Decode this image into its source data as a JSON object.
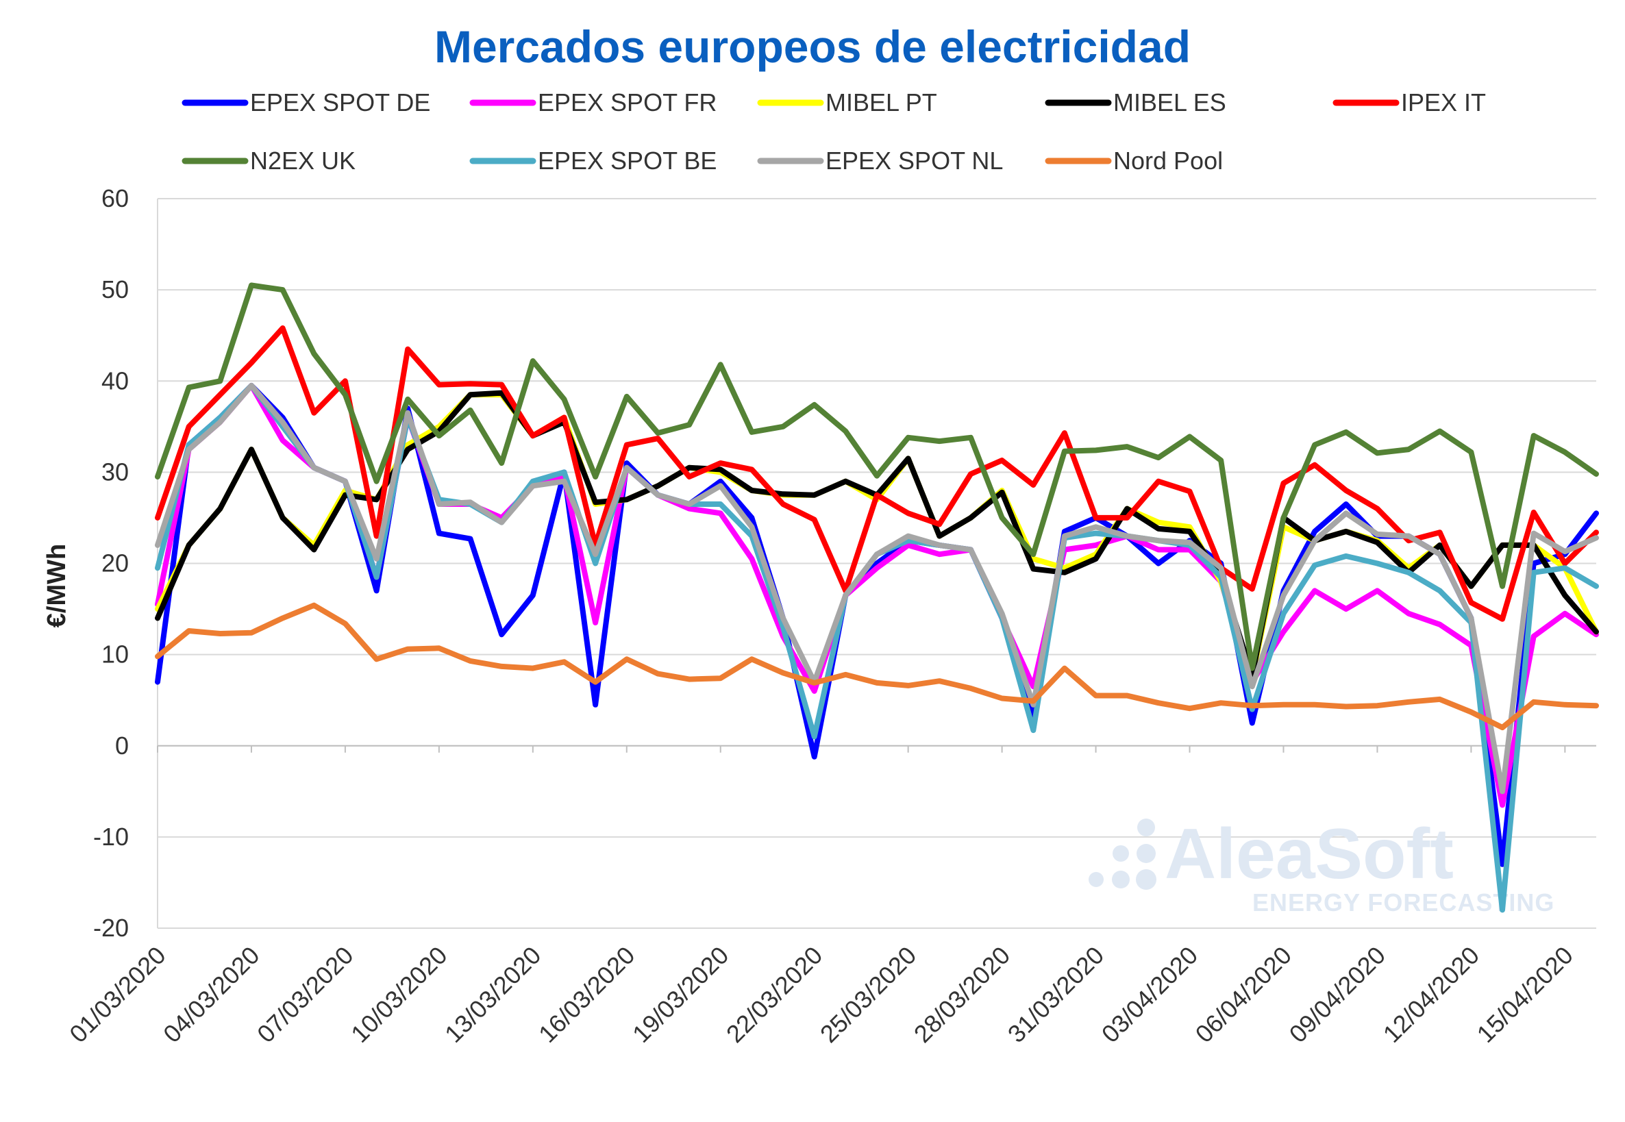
{
  "chart_data": {
    "type": "line",
    "title": "Mercados europeos de electricidad",
    "xlabel": "",
    "ylabel": "€/MWh",
    "ylim": [
      -20,
      60
    ],
    "yticks": [
      "60",
      "50",
      "40",
      "30",
      "20",
      "10",
      "0",
      "-10",
      "-20"
    ],
    "grid": "horizontal",
    "legend_position": "top",
    "x": [
      "01/03/2020",
      "02/03/2020",
      "03/03/2020",
      "04/03/2020",
      "05/03/2020",
      "06/03/2020",
      "07/03/2020",
      "08/03/2020",
      "09/03/2020",
      "10/03/2020",
      "11/03/2020",
      "12/03/2020",
      "13/03/2020",
      "14/03/2020",
      "15/03/2020",
      "16/03/2020",
      "17/03/2020",
      "18/03/2020",
      "19/03/2020",
      "20/03/2020",
      "21/03/2020",
      "22/03/2020",
      "23/03/2020",
      "24/03/2020",
      "25/03/2020",
      "26/03/2020",
      "27/03/2020",
      "28/03/2020",
      "29/03/2020",
      "30/03/2020",
      "31/03/2020",
      "01/04/2020",
      "02/04/2020",
      "03/04/2020",
      "04/04/2020",
      "05/04/2020",
      "06/04/2020",
      "07/04/2020",
      "08/04/2020",
      "09/04/2020",
      "10/04/2020",
      "11/04/2020",
      "12/04/2020",
      "13/04/2020",
      "14/04/2020",
      "15/04/2020",
      "16/04/2020"
    ],
    "xtick_labels": [
      "01/03/2020",
      "04/03/2020",
      "07/03/2020",
      "10/03/2020",
      "13/03/2020",
      "16/03/2020",
      "19/03/2020",
      "22/03/2020",
      "25/03/2020",
      "28/03/2020",
      "31/03/2020",
      "03/04/2020",
      "06/04/2020",
      "09/04/2020",
      "12/04/2020",
      "15/04/2020"
    ],
    "series": [
      {
        "name": "EPEX SPOT DE",
        "color": "#0000ff",
        "values": [
          7,
          33,
          36,
          39.5,
          36,
          30.5,
          29,
          17,
          37,
          23.3,
          22.7,
          12.2,
          16.5,
          30,
          4.5,
          31,
          27.5,
          26.5,
          29,
          25,
          14,
          -1.2,
          16.5,
          20,
          22.5,
          22,
          21.5,
          14,
          3,
          23.5,
          25,
          23,
          20,
          22.5,
          20,
          2.5,
          17,
          23.5,
          26.5,
          23,
          23,
          21,
          14,
          -13,
          20,
          21,
          25.5
        ]
      },
      {
        "name": "EPEX SPOT FR",
        "color": "#ff00ff",
        "values": [
          15.5,
          32.5,
          35.5,
          39.5,
          33.5,
          30.5,
          29,
          18.5,
          36,
          26.5,
          26.5,
          25,
          28.5,
          29.5,
          13.5,
          30.5,
          27.5,
          26,
          25.5,
          20.5,
          12,
          6,
          16.5,
          19.5,
          22,
          21,
          21.5,
          14,
          6.5,
          21.5,
          22,
          23,
          21.5,
          21.5,
          18,
          7,
          12.5,
          17,
          15,
          17,
          14.5,
          13.3,
          11,
          -6.5,
          12,
          14.5,
          12.2
        ]
      },
      {
        "name": "MIBEL PT",
        "color": "#ffff00",
        "values": [
          15,
          22,
          26,
          32.5,
          25,
          22,
          28,
          27,
          33,
          35,
          38.5,
          38.5,
          34,
          36,
          26.5,
          27,
          28.5,
          30.5,
          30,
          28,
          27.5,
          27.5,
          29,
          27,
          31.5,
          23,
          25,
          28,
          20.5,
          19.5,
          21,
          26,
          24.5,
          24,
          18,
          7.5,
          24,
          22.5,
          23.5,
          22.5,
          19.5,
          22,
          17.5,
          22,
          22,
          19.5,
          12.5
        ]
      },
      {
        "name": "MIBEL ES",
        "color": "#000000",
        "values": [
          14,
          22,
          26,
          32.5,
          25,
          21.5,
          27.5,
          27,
          32.5,
          34.5,
          38.5,
          38.7,
          34,
          35.5,
          26.7,
          27,
          28.5,
          30.5,
          30.3,
          28,
          27.6,
          27.5,
          29,
          27.5,
          31.5,
          23,
          25,
          27.8,
          19.4,
          19,
          20.5,
          26,
          23.8,
          23.5,
          18.5,
          7.7,
          25,
          22.5,
          23.5,
          22.3,
          19,
          22,
          17.5,
          22,
          22,
          16.5,
          12.5
        ]
      },
      {
        "name": "IPEX IT",
        "color": "#ff0000",
        "values": [
          25,
          35,
          38.5,
          42,
          45.8,
          36.5,
          40,
          23,
          43.5,
          39.6,
          39.7,
          39.6,
          34,
          36,
          22,
          33,
          33.7,
          29.5,
          31,
          30.3,
          26.5,
          24.8,
          17,
          27.5,
          25.5,
          24.3,
          29.8,
          31.3,
          28.6,
          34.3,
          25,
          25,
          29,
          27.9,
          19.5,
          17.2,
          28.8,
          30.8,
          28,
          26,
          22.5,
          23.4,
          15.7,
          13.9,
          25.6,
          20,
          23.4
        ]
      },
      {
        "name": "N2EX UK",
        "color": "#548235",
        "values": [
          29.5,
          39.3,
          40,
          50.5,
          50,
          43,
          38.5,
          29,
          38,
          34,
          36.8,
          31,
          42.2,
          38,
          29.5,
          38.3,
          34.3,
          35.2,
          41.8,
          34.4,
          35,
          37.4,
          34.5,
          29.6,
          33.8,
          33.4,
          33.8,
          25,
          21,
          32.3,
          32.4,
          32.8,
          31.6,
          33.9,
          31.3,
          8.5,
          25,
          33,
          34.4,
          32.1,
          32.5,
          34.5,
          32.2,
          17.5,
          34,
          32.2,
          29.8
        ]
      },
      {
        "name": "EPEX SPOT BE",
        "color": "#4bacc6",
        "values": [
          19.5,
          33,
          36,
          39.5,
          35,
          30.5,
          29,
          18.5,
          36,
          27,
          26.5,
          24.5,
          29,
          30,
          20,
          30.5,
          27.5,
          26.5,
          26.5,
          23,
          13,
          1,
          16.5,
          21,
          22.5,
          22,
          21.5,
          14,
          1.7,
          22.8,
          23.3,
          23,
          22.5,
          22,
          18.5,
          4,
          14.5,
          19.8,
          20.8,
          20,
          19,
          17,
          13.5,
          -18,
          19,
          19.5,
          17.5
        ]
      },
      {
        "name": "EPEX SPOT NL",
        "color": "#a6a6a6",
        "values": [
          22,
          32.5,
          35.5,
          39.5,
          35.5,
          30.5,
          29,
          20.5,
          36.5,
          26.5,
          26.7,
          24.5,
          28.5,
          29,
          21,
          30.5,
          27.5,
          26.5,
          28.5,
          24,
          14,
          7,
          16.5,
          21,
          23,
          22,
          21.5,
          14.5,
          4.5,
          23,
          24,
          23,
          22.5,
          22.3,
          19.5,
          6.5,
          16.5,
          22.5,
          25.5,
          23.2,
          23,
          21,
          14,
          -5,
          23.3,
          21.3,
          22.8
        ]
      },
      {
        "name": "Nord Pool",
        "color": "#ed7d31",
        "values": [
          9.8,
          12.6,
          12.3,
          12.4,
          14,
          15.4,
          13.4,
          9.5,
          10.6,
          10.7,
          9.3,
          8.7,
          8.5,
          9.2,
          7,
          9.5,
          7.9,
          7.3,
          7.4,
          9.5,
          8,
          6.9,
          7.8,
          6.9,
          6.6,
          7.1,
          6.3,
          5.2,
          4.9,
          8.5,
          5.5,
          5.5,
          4.7,
          4.1,
          4.7,
          4.4,
          4.5,
          4.5,
          4.3,
          4.4,
          4.8,
          5.1,
          3.7,
          2,
          4.8,
          4.5,
          4.4
        ]
      }
    ]
  },
  "watermark": {
    "brand": "AleaSoft",
    "tagline": "ENERGY FORECASTING"
  }
}
